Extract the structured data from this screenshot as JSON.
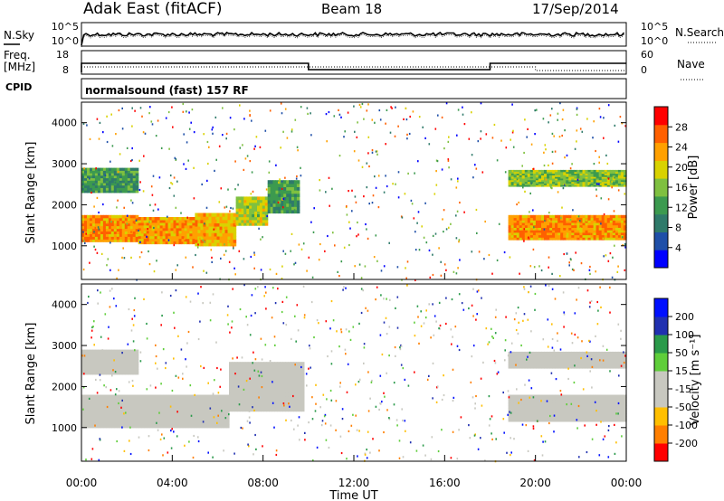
{
  "header": {
    "station": "Adak East (fitACF)",
    "beam": "Beam 18",
    "date": "17/Sep/2014"
  },
  "strips": {
    "nsky_label": "N.Sky",
    "nsearch_label": "N.Search",
    "freq_label_1": "Freq.",
    "freq_label_2": "[MHz]",
    "nave_label": "Nave",
    "cpid_label": "CPID",
    "cpid_text": "normalsound (fast) 157 RF",
    "noise_ticks_left": [
      "10^5",
      "10^0"
    ],
    "noise_ticks_right": [
      "10^5",
      "10^0"
    ],
    "freq_ticks_left": [
      "18",
      "8"
    ],
    "nave_ticks_right": [
      "60",
      "0"
    ]
  },
  "x_axis": {
    "label": "Time UT",
    "ticks": [
      "00:00",
      "04:00",
      "08:00",
      "12:00",
      "16:00",
      "20:00",
      "00:00"
    ]
  },
  "colors": {
    "power_scale": [
      "#0000ff",
      "#1f4fa8",
      "#2f7a6a",
      "#3c9a4f",
      "#7fc040",
      "#d9d200",
      "#ffa000",
      "#ff6000",
      "#ff0000"
    ],
    "velocity_scale": [
      "#ff0000",
      "#ff7f00",
      "#ffbf00",
      "#c8c8c0",
      "#c8c8c0",
      "#5fce3a",
      "#2a9a4a",
      "#2030b0",
      "#0010ff"
    ]
  },
  "chart_data": [
    {
      "type": "heatmap",
      "panel": "power",
      "ylabel": "Slant Range [km]",
      "xlabel": "",
      "xlim": [
        0,
        24
      ],
      "ylim": [
        180,
        4500
      ],
      "yticks": [
        "1000",
        "2000",
        "3000",
        "4000"
      ],
      "colorbar": {
        "label": "Power [dB]",
        "ticks": [
          "4",
          "8",
          "12",
          "16",
          "20",
          "24",
          "28"
        ],
        "range": [
          0,
          32
        ]
      },
      "bands": [
        {
          "t0": 0.0,
          "t1": 2.5,
          "r0": 1100,
          "r1": 1750,
          "value": 24
        },
        {
          "t0": 2.5,
          "t1": 5.0,
          "r0": 1050,
          "r1": 1700,
          "value": 23
        },
        {
          "t0": 5.0,
          "t1": 6.8,
          "r0": 1000,
          "r1": 1800,
          "value": 22
        },
        {
          "t0": 6.8,
          "t1": 8.2,
          "r0": 1500,
          "r1": 2200,
          "value": 18
        },
        {
          "t0": 8.2,
          "t1": 9.6,
          "r0": 1800,
          "r1": 2600,
          "value": 12
        },
        {
          "t0": 0.0,
          "t1": 2.5,
          "r0": 2300,
          "r1": 2900,
          "value": 12
        },
        {
          "t0": 18.8,
          "t1": 24.0,
          "r0": 1150,
          "r1": 1750,
          "value": 24
        },
        {
          "t0": 18.8,
          "t1": 24.0,
          "r0": 2450,
          "r1": 2850,
          "value": 16
        }
      ]
    },
    {
      "type": "heatmap",
      "panel": "velocity",
      "ylabel": "Slant Range [km]",
      "xlabel": "Time UT",
      "xlim": [
        0,
        24
      ],
      "ylim": [
        180,
        4500
      ],
      "yticks": [
        "1000",
        "2000",
        "3000",
        "4000"
      ],
      "colorbar": {
        "label": "Velocity [m s⁻¹]",
        "ticks": [
          "-200",
          "-100",
          "-50",
          "-15",
          "15",
          "50",
          "100",
          "200"
        ],
        "range": [
          -250,
          250
        ]
      },
      "bands": [
        {
          "t0": 0.0,
          "t1": 6.5,
          "r0": 1000,
          "r1": 1800,
          "value": 0
        },
        {
          "t0": 6.5,
          "t1": 9.8,
          "r0": 1400,
          "r1": 2600,
          "value": 0
        },
        {
          "t0": 18.8,
          "t1": 24.0,
          "r0": 1150,
          "r1": 1800,
          "value": 0
        },
        {
          "t0": 18.8,
          "t1": 24.0,
          "r0": 2450,
          "r1": 2850,
          "value": -20
        },
        {
          "t0": 0.0,
          "t1": 2.5,
          "r0": 2300,
          "r1": 2900,
          "value": 5
        }
      ]
    }
  ]
}
